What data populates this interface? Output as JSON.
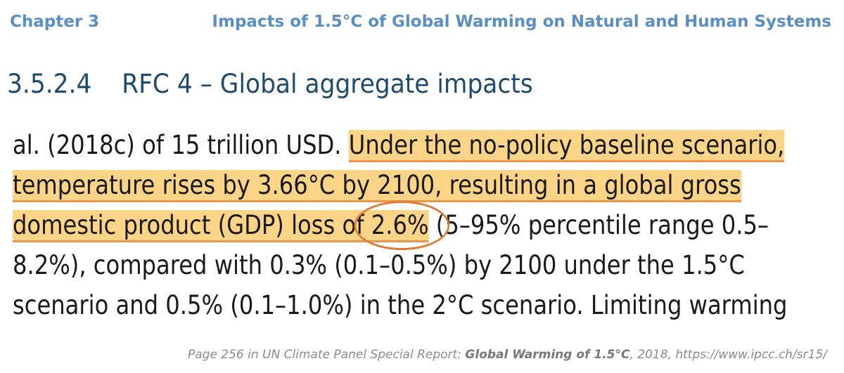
{
  "header": {
    "chapter": "Chapter 3",
    "title": "Impacts of 1.5°C of Global Warming on Natural and Human Systems"
  },
  "section": {
    "number": "3.5.2.4",
    "title": "RFC 4 – Global aggregate impacts"
  },
  "body": {
    "l1_a": "al. (2018c) of 15 trillion USD.",
    "l1_b": "Under the no-policy baseline scenario,",
    "l2_a": "temperature rises by 3.66°C by 2100, resulting in a global gross",
    "l3_a": "domestic product (GDP) loss of",
    "l3_circled": "2.6%",
    "l3_b": "(5–95% percentile range 0.5–",
    "l4": "8.2%), compared with 0.3% (0.1–0.5%) by 2100 under the 1.5°C",
    "l5": "scenario and 0.5% (0.1–1.0%) in the 2°C scenario. Limiting warming"
  },
  "caption": {
    "prefix": "Page 256 in UN Climate Panel Special Report: ",
    "report": "Global Warming of 1.5°C",
    "suffix": ", 2018, https://www.ipcc.ch/sr15/"
  },
  "colors": {
    "heading_blue": "#5a8ec6",
    "section_navy": "#1f4a6e",
    "highlight": "#fcd487",
    "circle": "#e07b33"
  }
}
